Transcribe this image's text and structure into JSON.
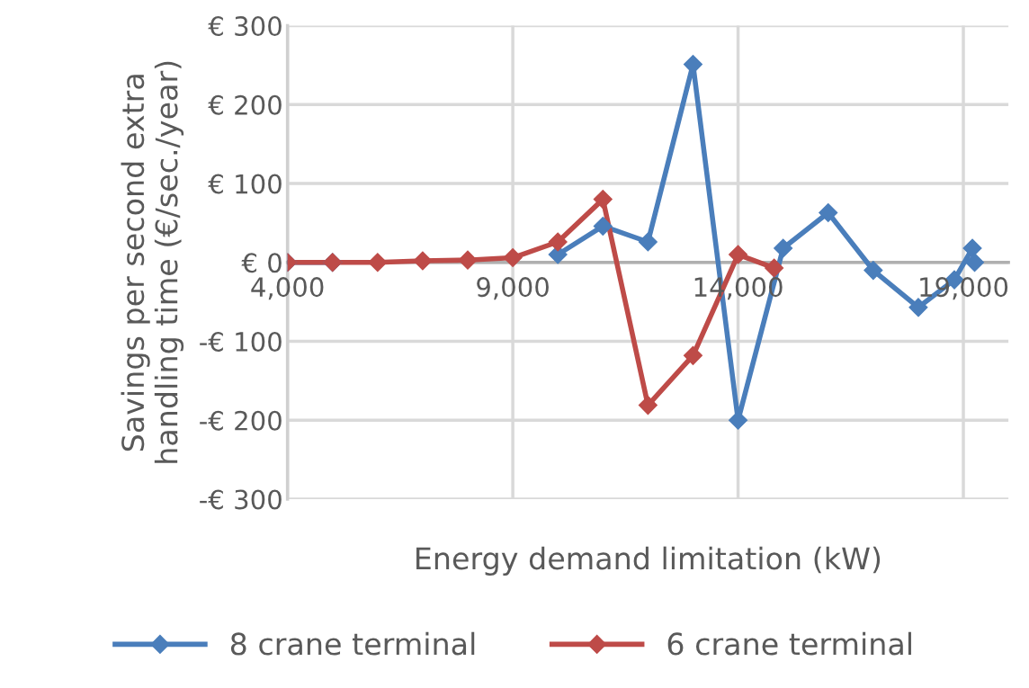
{
  "chart_data": {
    "type": "line",
    "xlabel": "Energy demand limitation (kW)",
    "ylabel": "Savings per second extra\nhandling time (€/sec./year)",
    "xlim": [
      4000,
      20000
    ],
    "xticks": [
      {
        "value": 4000,
        "label": "4,000"
      },
      {
        "value": 9000,
        "label": "9,000"
      },
      {
        "value": 14000,
        "label": "14,000"
      },
      {
        "value": 19000,
        "label": "19,000"
      }
    ],
    "ylim": [
      -300,
      300
    ],
    "yticks": [
      {
        "value": -300,
        "label": "-€ 300"
      },
      {
        "value": -200,
        "label": "-€ 200"
      },
      {
        "value": -100,
        "label": "-€ 100"
      },
      {
        "value": 0,
        "label": "€ 0"
      },
      {
        "value": 100,
        "label": "€ 100"
      },
      {
        "value": 200,
        "label": "€ 200"
      },
      {
        "value": 300,
        "label": "€ 300"
      }
    ],
    "grid": true,
    "legend": "bottom",
    "marker": "diamond",
    "line_style": "solid",
    "series": [
      {
        "name": "8 crane terminal",
        "color": "#4a7ebb",
        "x": [
          4000,
          5000,
          6000,
          7000,
          8000,
          9000,
          10000,
          11000,
          12000,
          13000,
          14000,
          15000,
          16000,
          17000,
          18000,
          18800,
          19200,
          19250
        ],
        "values": [
          0,
          0,
          null,
          null,
          null,
          null,
          10,
          46,
          26,
          251,
          -200,
          18,
          63,
          -10,
          -57,
          -22,
          18,
          0
        ]
      },
      {
        "name": "6 crane terminal",
        "color": "#be4b48",
        "x": [
          4000,
          5000,
          6000,
          7000,
          8000,
          9000,
          10000,
          11000,
          12000,
          13000,
          14000,
          14800
        ],
        "values": [
          0,
          0,
          0,
          2,
          3,
          6,
          26,
          80,
          -181,
          -118,
          10,
          -7
        ]
      }
    ]
  }
}
